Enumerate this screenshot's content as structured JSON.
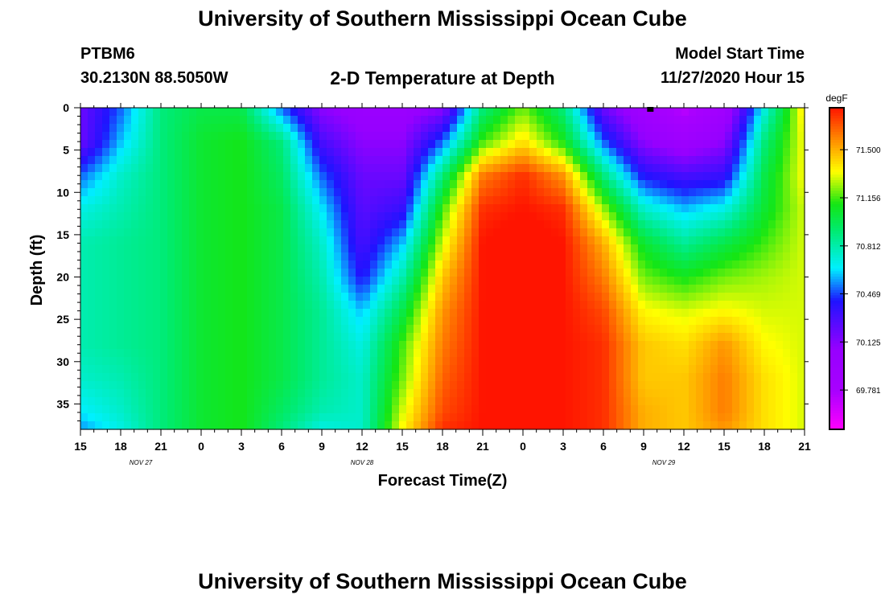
{
  "header": {
    "title": "University of Southern Mississippi Ocean Cube",
    "station_id": "PTBM6",
    "coordinates": "30.2130N 88.5050W",
    "plot_title": "2-D Temperature at Depth",
    "model_start_label": "Model Start Time",
    "model_start_value": "11/27/2020 Hour 15"
  },
  "footer": {
    "title": "University of Southern Mississippi Ocean Cube"
  },
  "chart_data": {
    "type": "heatmap",
    "title": "2-D Temperature at Depth",
    "xlabel": "Forecast Time(Z)",
    "ylabel": "Depth (ft)",
    "x_start_hour": 15,
    "x_end_hour": 69,
    "x_ticks_hours": [
      15,
      18,
      21,
      24,
      27,
      30,
      33,
      36,
      39,
      42,
      45,
      48,
      51,
      54,
      57,
      60,
      63,
      66,
      69
    ],
    "x_tick_labels": [
      "15",
      "18",
      "21",
      "0",
      "3",
      "6",
      "9",
      "12",
      "15",
      "18",
      "21",
      "0",
      "3",
      "6",
      "9",
      "12",
      "15",
      "18",
      "21"
    ],
    "date_labels": [
      {
        "hour": 19.5,
        "text": "NOV  27"
      },
      {
        "hour": 36,
        "text": "NOV  28"
      },
      {
        "hour": 58.5,
        "text": "NOV  29"
      }
    ],
    "ylim": [
      0,
      38
    ],
    "y_ticks": [
      0,
      5,
      10,
      15,
      20,
      25,
      30,
      35
    ],
    "colorbar": {
      "unit": "degF",
      "min": 69.5,
      "max": 71.8,
      "ticks": [
        69.781,
        70.125,
        70.469,
        70.812,
        71.156,
        71.5
      ],
      "tick_labels": [
        "69.781",
        "70.125",
        "70.469",
        "70.812",
        "71.156",
        "71.500"
      ]
    },
    "depths_ft": [
      0,
      4,
      8,
      12,
      16,
      20,
      24,
      28,
      32,
      36,
      38
    ],
    "hours": [
      15,
      18,
      21,
      24,
      27,
      30,
      33,
      36,
      39,
      42,
      45,
      48,
      51,
      54,
      57,
      60,
      63,
      66,
      69
    ],
    "temperature_degF": [
      [
        70.2,
        70.5,
        70.9,
        71.0,
        71.0,
        70.5,
        70.1,
        70.0,
        70.0,
        70.1,
        70.9,
        71.2,
        70.9,
        70.2,
        69.9,
        69.7,
        69.9,
        70.7,
        71.4
      ],
      [
        70.2,
        70.6,
        70.9,
        71.05,
        71.1,
        70.9,
        70.3,
        70.1,
        70.1,
        70.5,
        71.15,
        71.4,
        71.1,
        70.5,
        70.1,
        69.95,
        70.1,
        70.9,
        71.35
      ],
      [
        70.5,
        70.75,
        70.9,
        71.05,
        71.1,
        70.95,
        70.5,
        70.2,
        70.2,
        70.9,
        71.6,
        71.75,
        71.55,
        70.9,
        70.4,
        70.3,
        70.35,
        71.0,
        71.35
      ],
      [
        70.7,
        70.8,
        70.9,
        71.05,
        71.1,
        71.0,
        70.65,
        70.25,
        70.35,
        71.15,
        71.75,
        71.8,
        71.75,
        71.25,
        70.75,
        70.6,
        70.7,
        71.05,
        71.3
      ],
      [
        70.8,
        70.85,
        70.9,
        71.05,
        71.1,
        71.0,
        70.75,
        70.3,
        70.6,
        71.3,
        71.8,
        71.85,
        71.8,
        71.5,
        71.05,
        70.85,
        71.0,
        71.15,
        71.3
      ],
      [
        70.8,
        70.85,
        70.9,
        71.05,
        71.1,
        71.0,
        70.8,
        70.4,
        70.8,
        71.45,
        71.8,
        71.85,
        71.8,
        71.6,
        71.2,
        71.1,
        71.2,
        71.25,
        71.3
      ],
      [
        70.8,
        70.85,
        70.9,
        71.05,
        71.1,
        71.0,
        70.85,
        70.6,
        71.0,
        71.55,
        71.8,
        71.85,
        71.8,
        71.7,
        71.35,
        71.3,
        71.35,
        71.3,
        71.3
      ],
      [
        70.8,
        70.85,
        70.9,
        71.05,
        71.1,
        71.0,
        70.85,
        70.7,
        71.15,
        71.6,
        71.8,
        71.85,
        71.8,
        71.75,
        71.45,
        71.4,
        71.55,
        71.35,
        71.3
      ],
      [
        70.75,
        70.8,
        70.9,
        71.05,
        71.1,
        71.0,
        70.85,
        70.75,
        71.2,
        71.65,
        71.8,
        71.85,
        71.8,
        71.75,
        71.45,
        71.45,
        71.6,
        71.4,
        71.3
      ],
      [
        70.65,
        70.75,
        70.9,
        71.05,
        71.1,
        70.95,
        70.8,
        70.75,
        71.3,
        71.7,
        71.8,
        71.85,
        71.8,
        71.75,
        71.5,
        71.45,
        71.6,
        71.4,
        71.3
      ],
      [
        70.55,
        70.7,
        70.9,
        71.05,
        71.1,
        70.9,
        70.7,
        70.75,
        71.35,
        71.75,
        71.8,
        71.85,
        71.8,
        71.75,
        71.5,
        71.45,
        71.55,
        71.4,
        71.3
      ]
    ],
    "marker_hour": 57.5
  }
}
